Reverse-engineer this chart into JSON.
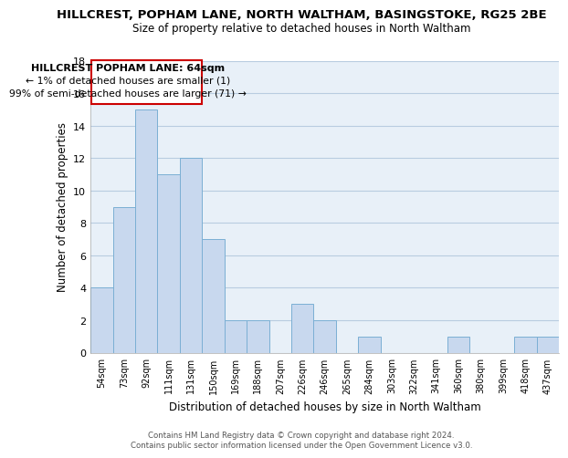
{
  "title": "HILLCREST, POPHAM LANE, NORTH WALTHAM, BASINGSTOKE, RG25 2BE",
  "subtitle": "Size of property relative to detached houses in North Waltham",
  "xlabel": "Distribution of detached houses by size in North Waltham",
  "ylabel": "Number of detached properties",
  "bar_labels": [
    "54sqm",
    "73sqm",
    "92sqm",
    "111sqm",
    "131sqm",
    "150sqm",
    "169sqm",
    "188sqm",
    "207sqm",
    "226sqm",
    "246sqm",
    "265sqm",
    "284sqm",
    "303sqm",
    "322sqm",
    "341sqm",
    "360sqm",
    "380sqm",
    "399sqm",
    "418sqm",
    "437sqm"
  ],
  "bar_values": [
    4,
    9,
    15,
    11,
    12,
    7,
    2,
    2,
    0,
    3,
    2,
    0,
    1,
    0,
    0,
    0,
    1,
    0,
    0,
    1,
    1
  ],
  "bar_color": "#c8d8ee",
  "bar_edge_color": "#7bafd4",
  "ylim": [
    0,
    18
  ],
  "yticks": [
    0,
    2,
    4,
    6,
    8,
    10,
    12,
    14,
    16,
    18
  ],
  "annotation_title": "HILLCREST POPHAM LANE: 64sqm",
  "annotation_line1": "← 1% of detached houses are smaller (1)",
  "annotation_line2": "99% of semi-detached houses are larger (71) →",
  "annotation_box_color": "#ffffff",
  "annotation_box_edge": "#cc0000",
  "footer_line1": "Contains HM Land Registry data © Crown copyright and database right 2024.",
  "footer_line2": "Contains public sector information licensed under the Open Government Licence v3.0.",
  "background_color": "#ffffff",
  "plot_bg_color": "#e8f0f8",
  "grid_color": "#b8cce0"
}
